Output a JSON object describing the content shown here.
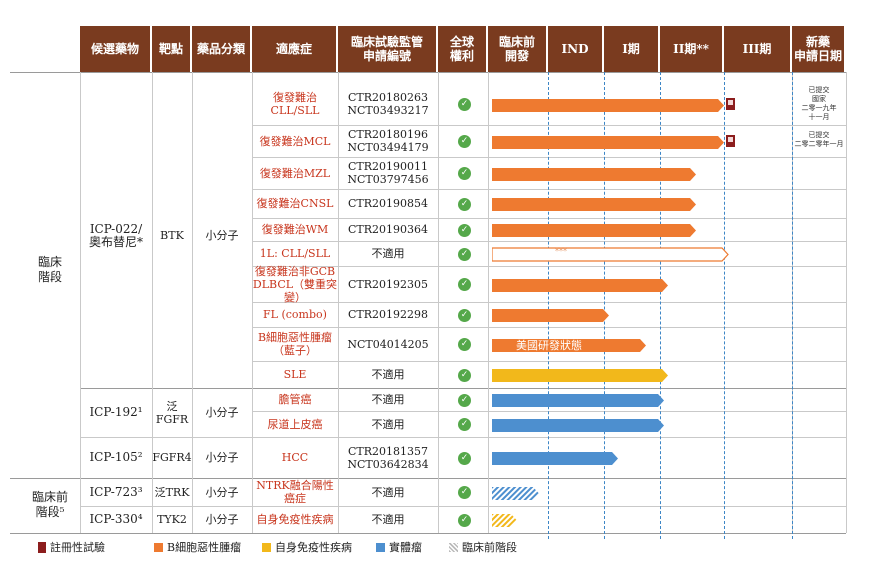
{
  "headers": [
    "候選藥物",
    "靶點",
    "藥品分類",
    "適應症",
    "臨床試驗監管\n申請編號",
    "全球\n權利",
    "臨床前\n開發",
    "IND",
    "I期",
    "II期**",
    "III期",
    "新藥\n申請日期"
  ],
  "stages": [
    "臨床\n階段",
    "臨床前\n階段⁵"
  ],
  "drugs": [
    {
      "name": "ICP-022/\n奧布替尼*",
      "target": "BTK",
      "category": "小分子"
    },
    {
      "name": "ICP-192¹",
      "target": "泛FGFR",
      "category": "小分子"
    },
    {
      "name": "ICP-105²",
      "target": "FGFR4",
      "category": "小分子"
    },
    {
      "name": "ICP-723³",
      "target": "泛TRK",
      "category": "小分子"
    },
    {
      "name": "ICP-330⁴",
      "target": "TYK2",
      "category": "小分子"
    }
  ],
  "rows": [
    {
      "indication": "復發難治CLL/SLL",
      "code": "CTR20180263\nNCT03493217",
      "rights": "✓",
      "type": "B細胞惡性腫瘤",
      "stage": "II期**",
      "bar_end": 1.0,
      "registrational": true,
      "nda": "已提交\n國家\n二零一九年\n十一月",
      "bar_text": "",
      "hollow": false
    },
    {
      "indication": "復發難治MCL",
      "code": "CTR20180196\nNCT03494179",
      "rights": "✓",
      "type": "B細胞惡性腫瘤",
      "stage": "II期**",
      "bar_end": 1.0,
      "registrational": true,
      "nda": "已提交\n二零二零年一月",
      "bar_text": "",
      "hollow": false
    },
    {
      "indication": "復發難治MZL",
      "code": "CTR20190011\nNCT03797456",
      "rights": "✓",
      "type": "B細胞惡性腫瘤",
      "stage": "II期**",
      "bar_end": 0.75,
      "registrational": false,
      "nda": "",
      "bar_text": "",
      "hollow": false
    },
    {
      "indication": "復發難治CNSL",
      "code": "CTR20190854",
      "rights": "✓",
      "type": "B細胞惡性腫瘤",
      "stage": "II期**",
      "bar_end": 0.75,
      "registrational": false,
      "nda": "",
      "bar_text": "",
      "hollow": false
    },
    {
      "indication": "復發難治WM",
      "code": "CTR20190364",
      "rights": "✓",
      "type": "B細胞惡性腫瘤",
      "stage": "II期**",
      "bar_end": 0.75,
      "registrational": false,
      "nda": "",
      "bar_text": "",
      "hollow": false
    },
    {
      "indication": "1L: CLL/SLL",
      "code": "不適用",
      "rights": "✓",
      "type": "B細胞惡性腫瘤",
      "stage": "III期",
      "bar_end": 1.0,
      "registrational": false,
      "nda": "",
      "bar_text": "***",
      "hollow": true
    },
    {
      "indication": "復發難治非GCB\nDLBCL（雙重突變）",
      "code": "CTR20192305",
      "rights": "✓",
      "type": "B細胞惡性腫瘤",
      "stage": "II期**",
      "bar_end": 0.5,
      "registrational": false,
      "nda": "",
      "bar_text": "",
      "hollow": false
    },
    {
      "indication": "FL (combo)",
      "code": "CTR20192298",
      "rights": "✓",
      "type": "B細胞惡性腫瘤",
      "stage": "I期",
      "bar_end": 0.0,
      "registrational": false,
      "nda": "",
      "bar_text": "",
      "hollow": false
    },
    {
      "indication": "B細胞惡性腫瘤\n（藍子）",
      "code": "NCT04014205",
      "rights": "✓",
      "type": "B細胞惡性腫瘤",
      "stage": "I期",
      "bar_end": 0.6,
      "registrational": false,
      "nda": "",
      "bar_text": "美國研發狀態",
      "hollow": false
    },
    {
      "indication": "SLE",
      "code": "不適用",
      "rights": "✓",
      "type": "自身免疫性疾病",
      "stage": "II期**",
      "bar_end": 0.5,
      "registrational": false,
      "nda": "",
      "bar_text": "",
      "hollow": false
    },
    {
      "indication": "膽管癌",
      "code": "不適用",
      "rights": "✓",
      "type": "實體瘤",
      "stage": "II期**",
      "bar_end": 0.5,
      "registrational": false,
      "nda": "",
      "bar_text": "",
      "hollow": false
    },
    {
      "indication": "尿道上皮癌",
      "code": "不適用",
      "rights": "✓",
      "type": "實體瘤",
      "stage": "II期**",
      "bar_end": 0.5,
      "registrational": false,
      "nda": "",
      "bar_text": "",
      "hollow": false
    },
    {
      "indication": "HCC",
      "code": "CTR20181357\nNCT03642834",
      "rights": "✓",
      "type": "實體瘤",
      "stage": "I期",
      "bar_end": 0.3,
      "registrational": false,
      "nda": "",
      "bar_text": "",
      "hollow": false
    },
    {
      "indication": "NTRK融合陽性癌症",
      "code": "不適用",
      "rights": "✓",
      "type": "臨床前階段",
      "stage": "臨床前\n開發",
      "bar_end": 0.6,
      "registrational": false,
      "nda": "",
      "bar_text": "",
      "hollow": false
    },
    {
      "indication": "自身免疫性疾病",
      "code": "不適用",
      "rights": "✓",
      "type": "臨床前階段",
      "stage": "臨床前\n開發",
      "bar_end": 0.35,
      "registrational": false,
      "nda": "",
      "bar_text": "",
      "hollow": false
    }
  ],
  "legend": [
    {
      "label": "註冊性試驗",
      "kind": "flag"
    },
    {
      "label": "B細胞惡性腫瘤",
      "kind": "orange"
    },
    {
      "label": "自身免疫性疾病",
      "kind": "yellow"
    },
    {
      "label": "實體瘤",
      "kind": "blue"
    },
    {
      "label": "臨床前階段",
      "kind": "hatch"
    }
  ],
  "colors": {
    "header": "#7a3b1f",
    "orange": "#ee7a30",
    "yellow": "#f2b81b",
    "blue": "#4d8fcf",
    "hatch": "#4d8fcf",
    "hatch_yellow": "#f2b81b",
    "registrational": "#8c1d1d",
    "check": "#55a84a"
  }
}
